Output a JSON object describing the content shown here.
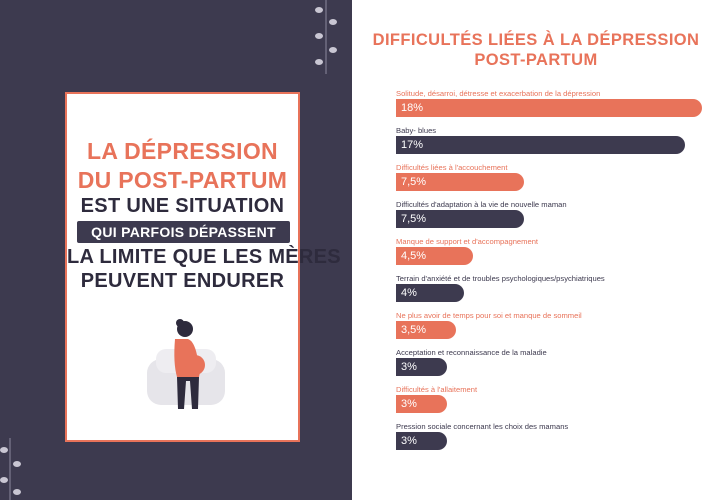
{
  "poster": {
    "line1": "LA DÉPRESSION",
    "line2": "DU POST-PARTUM",
    "line3": "EST UNE SITUATION",
    "line4": "QUI PARFOIS DÉPASSENT",
    "line5": "LA LIMITE QUE LES MÈRES",
    "line6": "PEUVENT ENDURER"
  },
  "colors": {
    "accent": "#e8735a",
    "dark": "#3d3a4f"
  },
  "chart_data": {
    "type": "bar",
    "orientation": "horizontal",
    "title_line1": "DIFFICULTÉS LIÉES À LA DÉPRESSION",
    "title_line2": "POST-PARTUM",
    "xlim": [
      0,
      18
    ],
    "categories": [
      "Solitude, désarroi, détresse et exacerbation de la dépression",
      "Baby- blues",
      "Difficultés liées à l'accouchement",
      "Difficultés d'adaptation à la vie de nouvelle maman",
      "Manque de support et d'accompagnement",
      "Terrain d'anxiété et de troubles psychologiques/psychiatriques",
      "Ne plus avoir de temps pour soi et manque de sommeil",
      "Acceptation et reconnaissance de la maladie",
      "Difficultés à l'allaitement",
      "Pression sociale concernant les choix des mamans"
    ],
    "values": [
      18,
      17,
      7.5,
      7.5,
      4.5,
      4,
      3.5,
      3,
      3,
      3
    ],
    "value_labels": [
      "18%",
      "17%",
      "7,5%",
      "7,5%",
      "4,5%",
      "4%",
      "3,5%",
      "3%",
      "3%",
      "3%"
    ],
    "bar_colors": [
      "#e8735a",
      "#3d3a4f",
      "#e8735a",
      "#3d3a4f",
      "#e8735a",
      "#3d3a4f",
      "#e8735a",
      "#3d3a4f",
      "#e8735a",
      "#3d3a4f"
    ]
  }
}
